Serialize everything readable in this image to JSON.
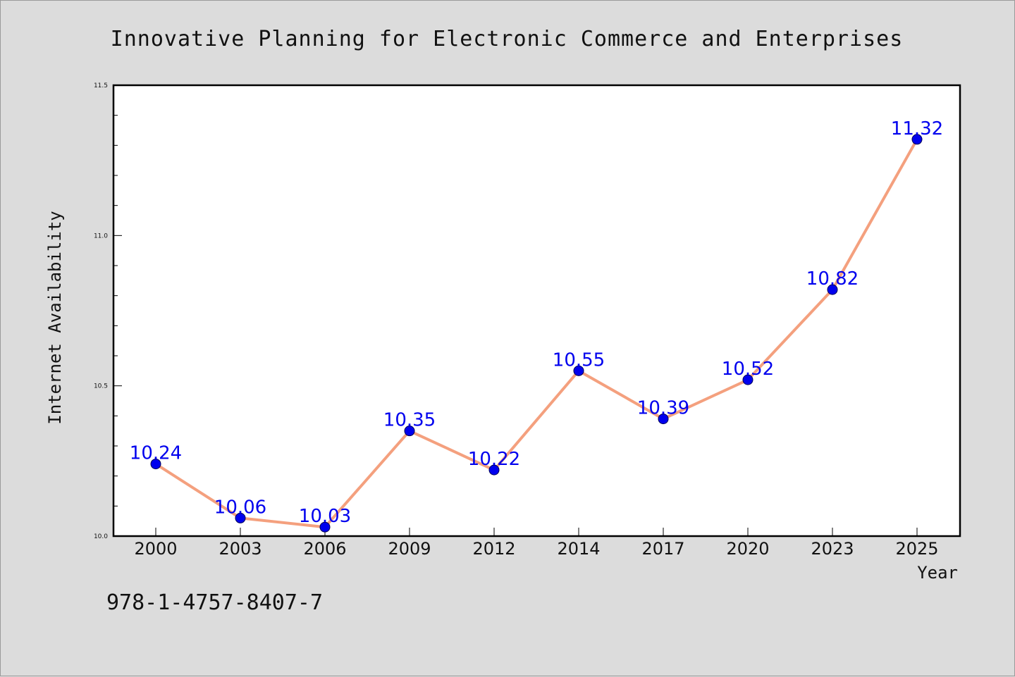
{
  "isbn": "978-1-4757-8407-7",
  "chart_data": {
    "type": "line",
    "title": "Innovative Planning for Electronic Commerce and Enterprises",
    "xlabel": "Year",
    "ylabel": "Internet Availability",
    "categories": [
      "2000",
      "2003",
      "2006",
      "2009",
      "2012",
      "2014",
      "2017",
      "2020",
      "2023",
      "2025"
    ],
    "values": [
      10.24,
      10.06,
      10.03,
      10.35,
      10.22,
      10.55,
      10.39,
      10.52,
      10.82,
      11.32
    ],
    "data_labels": [
      "10.24",
      "10.06",
      "10.03",
      "10.35",
      "10.22",
      "10.55",
      "10.39",
      "10.52",
      "10.82",
      "11.32"
    ],
    "ylim": [
      10.0,
      11.5
    ],
    "y_ticks": [
      "10.0",
      "10.5",
      "11.0",
      "11.5"
    ],
    "y_tick_values": [
      10.0,
      10.5,
      11.0,
      11.5
    ],
    "y_minor_step": 0.1,
    "grid": false,
    "legend": "none",
    "colors": {
      "line": "#f4a07e",
      "marker": "#0000ee",
      "data_label": "#0000ee",
      "background": "#dcdcdc",
      "plot_background": "#ffffff"
    }
  }
}
